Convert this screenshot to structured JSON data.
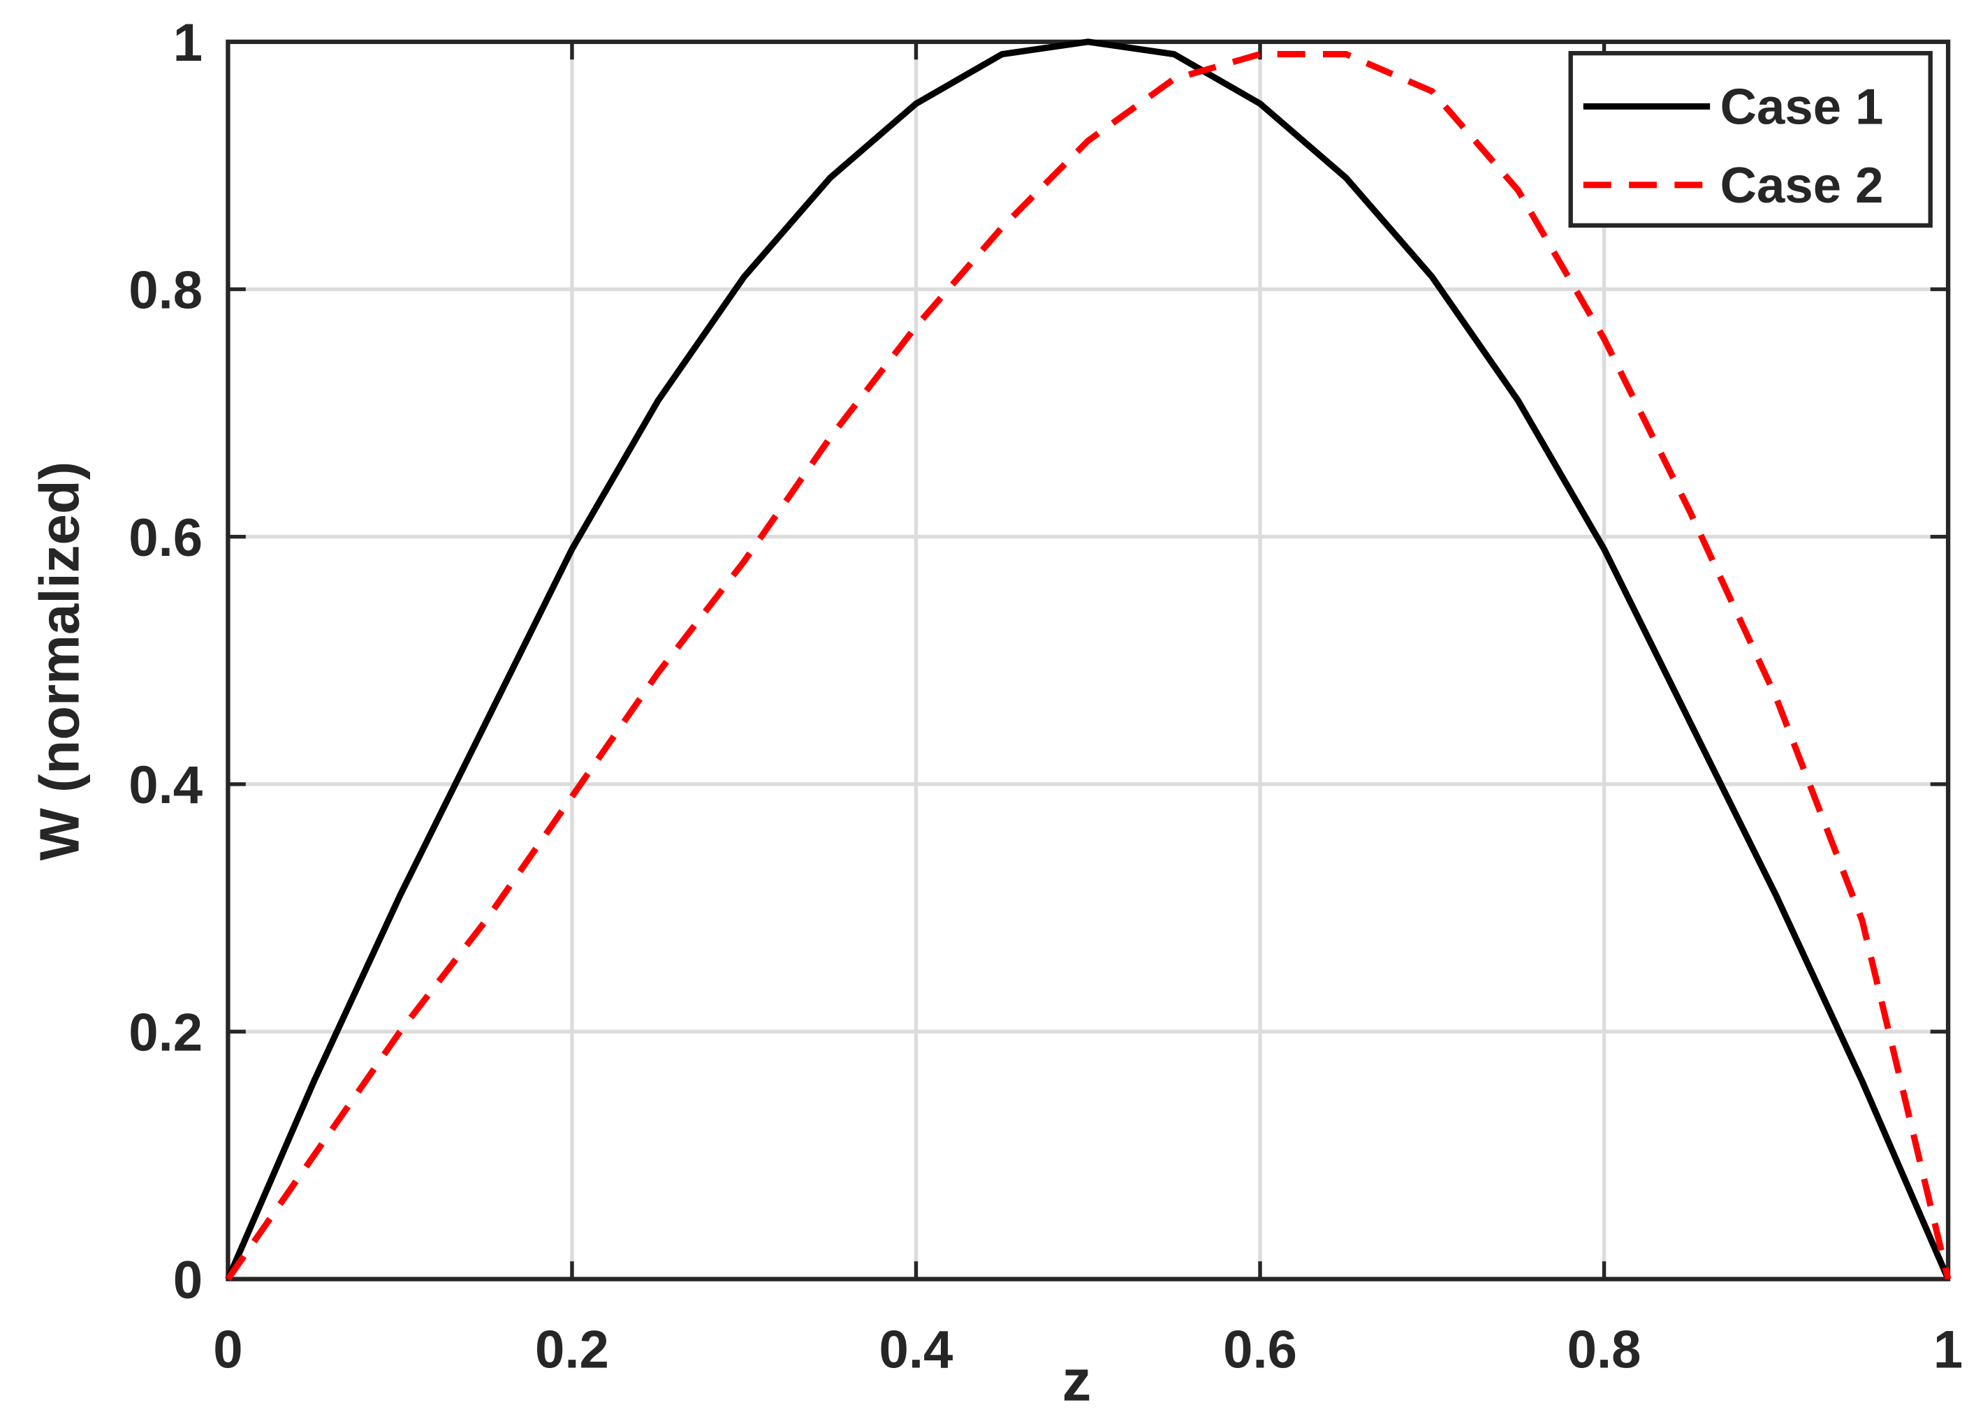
{
  "chart_data": {
    "type": "line",
    "xlabel": "z",
    "ylabel": "W (normalized)",
    "x": [
      0,
      0.05,
      0.1,
      0.15,
      0.2,
      0.25,
      0.3,
      0.35,
      0.4,
      0.45,
      0.5,
      0.55,
      0.6,
      0.65,
      0.7,
      0.75,
      0.8,
      0.85,
      0.9,
      0.95,
      1
    ],
    "series": [
      {
        "name": "Case 1",
        "color": "#000000",
        "dash": false,
        "values": [
          0,
          0.16,
          0.31,
          0.45,
          0.59,
          0.71,
          0.81,
          0.89,
          0.95,
          0.99,
          1,
          0.99,
          0.95,
          0.89,
          0.81,
          0.71,
          0.59,
          0.45,
          0.31,
          0.16,
          0
        ]
      },
      {
        "name": "Case 2",
        "color": "#ff0000",
        "dash": true,
        "values": [
          0,
          0.1,
          0.2,
          0.29,
          0.39,
          0.49,
          0.58,
          0.68,
          0.77,
          0.85,
          0.92,
          0.97,
          0.99,
          0.99,
          0.96,
          0.88,
          0.76,
          0.62,
          0.47,
          0.29,
          0
        ]
      }
    ],
    "xlim": [
      0,
      1
    ],
    "ylim": [
      0,
      1
    ],
    "xticks": [
      0,
      0.2,
      0.4,
      0.6,
      0.8,
      1
    ],
    "yticks": [
      0,
      0.2,
      0.4,
      0.6,
      0.8,
      1
    ],
    "grid": true,
    "legend": "northeast"
  }
}
